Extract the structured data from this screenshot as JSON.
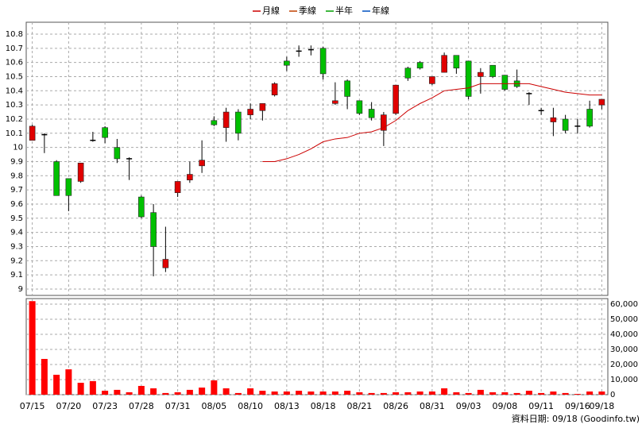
{
  "chart_data": [
    {
      "type": "candlestick",
      "legend": [
        {
          "name": "月線",
          "color": "#cc0000"
        },
        {
          "name": "季線",
          "color": "#c04000"
        },
        {
          "name": "半年",
          "color": "#00a000"
        },
        {
          "name": "年線",
          "color": "#0050c0"
        }
      ],
      "categories": [
        "07/15",
        null,
        null,
        "07/20",
        null,
        null,
        "07/23",
        null,
        null,
        "07/28",
        null,
        null,
        "07/31",
        null,
        null,
        "08/05",
        null,
        null,
        "08/10",
        null,
        null,
        "08/13",
        null,
        null,
        "08/18",
        null,
        null,
        "08/21",
        null,
        null,
        "08/26",
        null,
        null,
        "08/31",
        null,
        null,
        "09/03",
        null,
        null,
        "09/08",
        null,
        null,
        "09/11",
        null,
        null,
        "09/16",
        null,
        "09/18"
      ],
      "open": [
        10.05,
        10.09,
        9.9,
        9.78,
        9.76,
        10.05,
        10.14,
        10.0,
        9.92,
        9.65,
        9.54,
        9.15,
        9.68,
        9.77,
        9.87,
        10.19,
        10.14,
        10.25,
        10.23,
        10.26,
        10.37,
        10.61,
        10.68,
        10.69,
        10.7,
        10.31,
        10.47,
        10.33,
        10.27,
        10.12,
        10.24,
        10.56,
        10.6,
        10.45,
        10.53,
        10.65,
        10.61,
        10.5,
        10.58,
        10.51,
        10.47,
        10.38,
        10.26,
        10.18,
        10.2,
        10.15,
        10.27,
        10.3
      ],
      "high": [
        10.16,
        10.1,
        9.91,
        9.78,
        9.89,
        10.11,
        10.15,
        10.06,
        9.93,
        9.66,
        9.6,
        9.44,
        9.76,
        9.9,
        10.05,
        10.22,
        10.28,
        10.27,
        10.31,
        10.31,
        10.46,
        10.64,
        10.72,
        10.72,
        10.71,
        10.46,
        10.48,
        10.33,
        10.32,
        10.25,
        10.44,
        10.57,
        10.61,
        10.5,
        10.67,
        10.65,
        10.61,
        10.56,
        10.58,
        10.51,
        10.55,
        10.39,
        10.28,
        10.28,
        10.23,
        10.2,
        10.33,
        10.34
      ],
      "low": [
        10.05,
        9.96,
        9.66,
        9.55,
        9.75,
        10.04,
        10.03,
        9.89,
        9.77,
        9.5,
        9.09,
        9.12,
        9.65,
        9.75,
        9.82,
        10.15,
        10.04,
        10.05,
        10.2,
        10.19,
        10.36,
        10.54,
        10.64,
        10.65,
        10.48,
        10.3,
        10.27,
        10.23,
        10.19,
        10.01,
        10.23,
        10.47,
        10.55,
        10.44,
        10.53,
        10.52,
        10.34,
        10.38,
        10.49,
        10.4,
        10.42,
        10.3,
        10.23,
        10.08,
        10.1,
        10.1,
        10.14,
        10.27
      ],
      "close": [
        10.15,
        10.09,
        9.66,
        9.66,
        9.89,
        10.05,
        10.07,
        9.92,
        9.92,
        9.51,
        9.3,
        9.21,
        9.76,
        9.81,
        9.91,
        10.16,
        10.25,
        10.1,
        10.27,
        10.31,
        10.45,
        10.58,
        10.68,
        10.69,
        10.52,
        10.33,
        10.36,
        10.24,
        10.21,
        10.23,
        10.44,
        10.49,
        10.56,
        10.5,
        10.65,
        10.56,
        10.36,
        10.53,
        10.5,
        10.41,
        10.43,
        10.38,
        10.26,
        10.21,
        10.12,
        10.15,
        10.15,
        10.34
      ],
      "up_color": "#e00000",
      "down_color": "#00c000",
      "ma_series": [
        {
          "name": "月線",
          "color": "#cc0000",
          "values": [
            null,
            null,
            null,
            null,
            null,
            null,
            null,
            null,
            null,
            null,
            null,
            null,
            null,
            null,
            null,
            null,
            null,
            null,
            null,
            9.9,
            9.9,
            9.92,
            9.95,
            9.99,
            10.04,
            10.06,
            10.07,
            10.1,
            10.11,
            10.14,
            10.19,
            10.26,
            10.31,
            10.35,
            10.4,
            10.41,
            10.42,
            10.45,
            10.45,
            10.45,
            10.45,
            10.45,
            10.43,
            10.41,
            10.39,
            10.38,
            10.37,
            10.37
          ]
        }
      ],
      "ylim": [
        8.955,
        10.884
      ],
      "yticks": [
        9,
        9.1,
        9.2,
        9.3,
        9.4,
        9.5,
        9.6,
        9.7,
        9.8,
        9.9,
        10,
        10.1,
        10.2,
        10.3,
        10.4,
        10.5,
        10.6,
        10.7,
        10.8
      ],
      "grid": true,
      "source": "資料日期: 09/18 (Goodinfo.tw)"
    },
    {
      "type": "bar",
      "values": [
        62000,
        23700,
        13200,
        16800,
        7900,
        9000,
        2600,
        3200,
        1600,
        5800,
        4200,
        1100,
        1600,
        3200,
        4700,
        9500,
        4200,
        1100,
        4200,
        2600,
        2100,
        2100,
        2600,
        2100,
        2100,
        2100,
        2600,
        1600,
        1100,
        1100,
        1600,
        1600,
        2100,
        2100,
        4200,
        1600,
        1100,
        3200,
        1600,
        1600,
        1100,
        2600,
        1100,
        2100,
        1100,
        500,
        2100,
        2100
      ],
      "color": "#ff0000",
      "ylim": [
        0,
        63700
      ],
      "yticks": [
        0,
        {
          "value": 10000,
          "label": "10,000"
        },
        {
          "value": 20000,
          "label": "20,000"
        },
        {
          "value": 30000,
          "label": "30,000"
        },
        {
          "value": 40000,
          "label": "40,000"
        },
        {
          "value": 50000,
          "label": "50,000"
        },
        {
          "value": 60000,
          "label": "60,000"
        }
      ],
      "grid": true
    }
  ]
}
